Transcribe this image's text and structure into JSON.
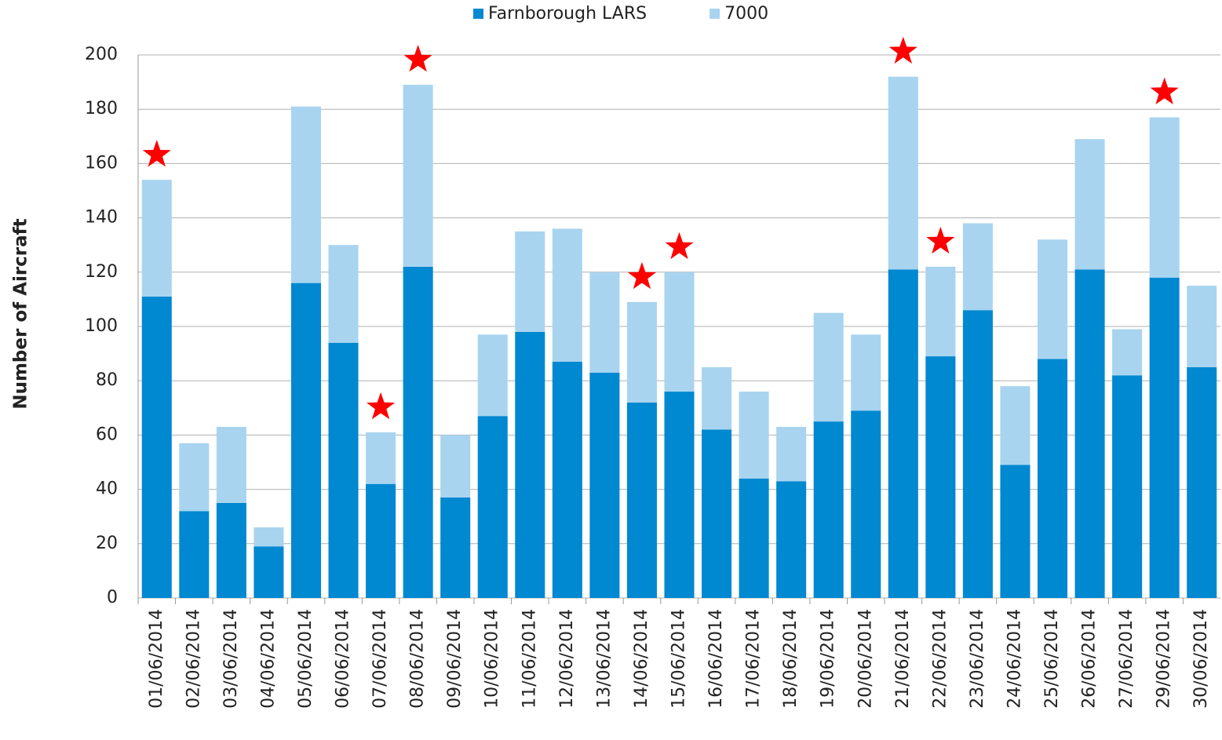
{
  "chart_data": {
    "type": "stacked_bar",
    "y_label": "Number of Aircraft",
    "categories": [
      "01/06/2014",
      "02/06/2014",
      "03/06/2014",
      "04/06/2014",
      "05/06/2014",
      "06/06/2014",
      "07/06/2014",
      "08/06/2014",
      "09/06/2014",
      "10/06/2014",
      "11/06/2014",
      "12/06/2014",
      "13/06/2014",
      "14/06/2014",
      "15/06/2014",
      "16/06/2014",
      "17/06/2014",
      "18/06/2014",
      "19/06/2014",
      "20/06/2014",
      "21/06/2014",
      "22/06/2014",
      "23/06/2014",
      "24/06/2014",
      "25/06/2014",
      "26/06/2014",
      "27/06/2014",
      "29/06/2014",
      "30/06/2014"
    ],
    "series": [
      {
        "name": "Farnborough LARS",
        "color": "#0088d1",
        "values": [
          111,
          32,
          35,
          19,
          116,
          94,
          42,
          122,
          37,
          67,
          98,
          87,
          83,
          72,
          76,
          62,
          44,
          43,
          65,
          69,
          121,
          89,
          106,
          49,
          88,
          121,
          82,
          118,
          85
        ]
      },
      {
        "name": "7000",
        "color": "#a8d4f0",
        "values": [
          43,
          25,
          28,
          7,
          65,
          36,
          19,
          67,
          23,
          30,
          37,
          49,
          37,
          37,
          44,
          23,
          32,
          20,
          40,
          28,
          71,
          33,
          32,
          29,
          44,
          48,
          17,
          59,
          30
        ]
      }
    ],
    "highlighted": [
      "01/06/2014",
      "07/06/2014",
      "08/06/2014",
      "14/06/2014",
      "15/06/2014",
      "21/06/2014",
      "22/06/2014",
      "29/06/2014"
    ],
    "highlight_color": "#ff0000",
    "ylim": [
      0,
      200
    ],
    "yticks": [
      0,
      20,
      40,
      60,
      80,
      100,
      120,
      140,
      160,
      180,
      200
    ],
    "grid": true,
    "legend": "top"
  }
}
